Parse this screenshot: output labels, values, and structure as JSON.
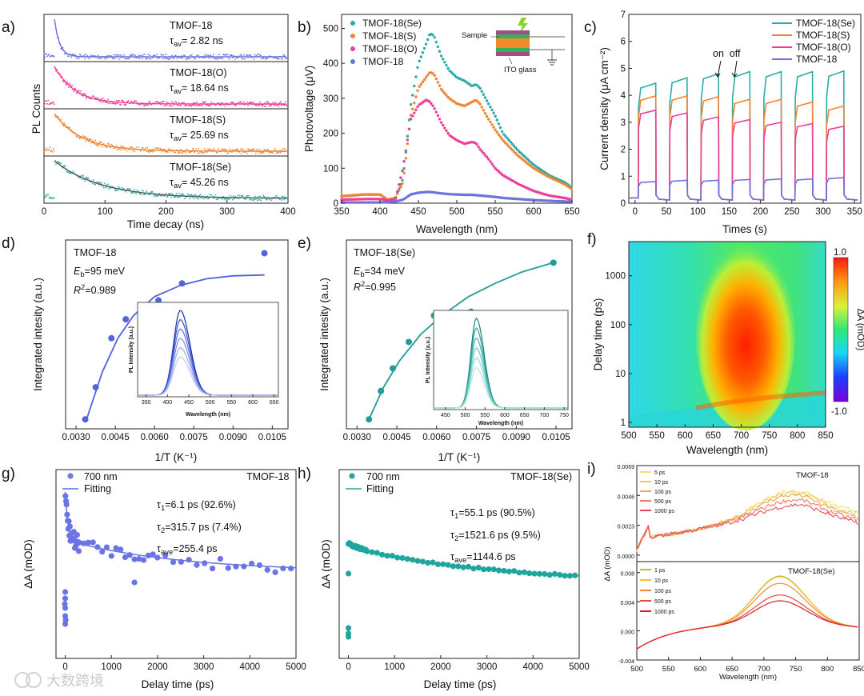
{
  "panels": [
    {
      "id": "a",
      "label": "a)",
      "xlabel": "Time decay (ns)",
      "ylabel": "PL Counts",
      "xticks": [
        "0",
        "100",
        "200",
        "300",
        "400"
      ],
      "traces": [
        {
          "name": "TMOF-18",
          "tau": "= 2.82 ns",
          "color": "#6e72e0"
        },
        {
          "name": "TMOF-18(O)",
          "tau": "= 18.64 ns",
          "color": "#ec3f97"
        },
        {
          "name": "TMOF-18(S)",
          "tau": "= 25.69 ns",
          "color": "#f08432"
        },
        {
          "name": "TMOF-18(Se)",
          "tau": "= 45.26 ns",
          "color": "#2aada6"
        }
      ]
    },
    {
      "id": "b",
      "label": "b)",
      "xlabel": "Wavelength (nm)",
      "ylabel": "Photovoltage (μV)",
      "xticks": [
        "350",
        "400",
        "450",
        "500",
        "550",
        "600",
        "650"
      ],
      "yticks": [
        "0",
        "100",
        "200",
        "300",
        "400",
        "500"
      ],
      "legend": [
        "TMOF-18(Se)",
        "TMOF-18(S)",
        "TMOF-18(O)",
        "TMOF-18"
      ],
      "inset": {
        "top": "Sample",
        "bottom": "ITO glass"
      }
    },
    {
      "id": "c",
      "label": "c)",
      "xlabel": "Times (s)",
      "ylabel": "Current density (μA cm⁻²)",
      "xticks": [
        "0",
        "50",
        "100",
        "150",
        "200",
        "250",
        "300",
        "350"
      ],
      "yticks": [
        "0",
        "1",
        "2",
        "3",
        "4",
        "5",
        "6",
        "7"
      ],
      "legend": [
        "TMOF-18(Se)",
        "TMOF-18(S)",
        "TMOF-18(O)",
        "TMOF-18"
      ],
      "annotation": "on  off"
    },
    {
      "id": "d",
      "label": "d)",
      "xlabel": "1/T (K⁻¹)",
      "ylabel": "Integrated intesity (a.u.)",
      "name": "TMOF-18",
      "eb": "=95 meV",
      "r2": "=0.989",
      "xticks": [
        "0.0030",
        "0.0045",
        "0.0060",
        "0.0075",
        "0.0090",
        "0.0105"
      ],
      "inset": {
        "xlabel": "Wavelength (nm)",
        "ylabel": "PL Intensity (a.u.)",
        "xticks": [
          "350",
          "400",
          "450",
          "500",
          "550",
          "600",
          "650"
        ]
      }
    },
    {
      "id": "e",
      "label": "e)",
      "xlabel": "1/T (K⁻¹)",
      "ylabel": "Integrated intesity (a.u.)",
      "name": "TMOF-18(Se)",
      "eb": "=34 meV",
      "r2": "=0.995",
      "xticks": [
        "0.0030",
        "0.0045",
        "0.0060",
        "0.0075",
        "0.0090",
        "0.0105"
      ],
      "inset": {
        "xlabel": "Wavelength (nm)",
        "ylabel": "PL Intensity (a.u.)",
        "xticks": [
          "450",
          "500",
          "550",
          "600",
          "650",
          "700",
          "750"
        ]
      }
    },
    {
      "id": "f",
      "label": "f)",
      "xlabel": "Wavelength (nm)",
      "ylabel": "Delay time (ps)",
      "xticks": [
        "500",
        "550",
        "600",
        "650",
        "700",
        "750",
        "800",
        "850"
      ],
      "yticks": [
        "1",
        "10",
        "100",
        "1000"
      ],
      "colorbar": {
        "max": "1.0",
        "min": "-1.0",
        "label": "ΔA (mOD)"
      }
    },
    {
      "id": "g",
      "label": "g)",
      "xlabel": "Delay time (ps)",
      "ylabel": "ΔA (mOD)",
      "name": "TMOF-18",
      "legend": [
        "700 nm",
        "Fitting"
      ],
      "tau1": "=6.1 ps (92.6%)",
      "tau2": "=315.7 ps (7.4%)",
      "tauave": "=255.4 ps",
      "xticks": [
        "0",
        "1000",
        "2000",
        "3000",
        "4000",
        "5000"
      ]
    },
    {
      "id": "h",
      "label": "h)",
      "xlabel": "Delay time (ps)",
      "ylabel": "ΔA (mOD)",
      "name": "TMOF-18(Se)",
      "legend": [
        "700 nm",
        "Fitting"
      ],
      "tau1": "=55.1 ps (90.5%)",
      "tau2": "=1521.6 ps (9.5%)",
      "tauave": "=1144.6 ps",
      "xticks": [
        "0",
        "1000",
        "2000",
        "3000",
        "4000",
        "5000"
      ]
    },
    {
      "id": "i",
      "label": "i)",
      "xlabel": "Wavelength (nm)",
      "ylabel": "ΔA (mOD)",
      "top": {
        "name": "TMOF-18",
        "legend": [
          "5 ps",
          "10 ps",
          "100 ps",
          "500 ps",
          "1000 ps"
        ],
        "yticks": [
          "0.0000",
          "0.0023",
          "0.0046",
          "0.0069"
        ]
      },
      "bottom": {
        "name": "TMOF-18(Se)",
        "legend": [
          "1 ps",
          "10 ps",
          "100 ps",
          "500 ps",
          "1000 ps"
        ],
        "yticks": [
          "-0.004",
          "0.000",
          "0.004",
          "0.008"
        ]
      },
      "xticks": [
        "500",
        "550",
        "600",
        "650",
        "700",
        "750",
        "800",
        "850"
      ]
    }
  ],
  "watermark": "大数跨境",
  "chart_data": [
    {
      "panel": "a",
      "type": "scatter",
      "x_range": [
        0,
        400
      ],
      "series": [
        {
          "name": "TMOF-18",
          "tau_av_ns": 2.82
        },
        {
          "name": "TMOF-18(O)",
          "tau_av_ns": 18.64
        },
        {
          "name": "TMOF-18(S)",
          "tau_av_ns": 25.69
        },
        {
          "name": "TMOF-18(Se)",
          "tau_av_ns": 45.26
        }
      ]
    },
    {
      "panel": "b",
      "type": "line",
      "x_range": [
        350,
        650
      ],
      "y_range": [
        0,
        540
      ],
      "x": [
        350,
        380,
        400,
        410,
        420,
        430,
        440,
        450,
        460,
        465,
        470,
        480,
        490,
        500,
        510,
        520,
        525,
        530,
        540,
        550,
        560,
        580,
        600,
        620,
        640,
        650
      ],
      "series": [
        {
          "name": "TMOF-18(Se)",
          "color": "#2aada6",
          "values": [
            20,
            25,
            25,
            10,
            15,
            70,
            280,
            400,
            455,
            485,
            480,
            420,
            380,
            360,
            350,
            335,
            340,
            330,
            290,
            250,
            200,
            150,
            110,
            80,
            60,
            45
          ]
        },
        {
          "name": "TMOF-18(S)",
          "color": "#f08432",
          "values": [
            20,
            25,
            25,
            10,
            15,
            60,
            250,
            330,
            360,
            375,
            370,
            325,
            300,
            285,
            278,
            290,
            295,
            285,
            245,
            210,
            180,
            135,
            100,
            75,
            55,
            40
          ]
        },
        {
          "name": "TMOF-18(O)",
          "color": "#ec3f97",
          "values": [
            10,
            12,
            12,
            8,
            10,
            100,
            240,
            280,
            295,
            290,
            275,
            230,
            195,
            180,
            170,
            175,
            172,
            155,
            130,
            100,
            80,
            55,
            35,
            22,
            15,
            10
          ]
        },
        {
          "name": "TMOF-18",
          "color": "#6e72e0",
          "values": [
            2,
            2,
            2,
            3,
            5,
            10,
            25,
            30,
            32,
            32,
            31,
            28,
            26,
            25,
            24,
            24,
            23,
            22,
            20,
            18,
            15,
            12,
            9,
            7,
            5,
            4
          ]
        }
      ]
    },
    {
      "panel": "c",
      "type": "line",
      "x_range": [
        -10,
        360
      ],
      "y_range": [
        0,
        7
      ],
      "on_times_s": [
        5,
        55,
        105,
        155,
        205,
        255,
        305
      ],
      "series": [
        {
          "name": "TMOF-18(Se)",
          "color": "#2aada6",
          "on_values": [
            4.45,
            4.65,
            4.8,
            4.88,
            4.88,
            4.88,
            4.9
          ]
        },
        {
          "name": "TMOF-18(S)",
          "color": "#f08432",
          "on_values": [
            3.98,
            3.98,
            3.95,
            3.85,
            3.85,
            3.75,
            3.6
          ]
        },
        {
          "name": "TMOF-18(O)",
          "color": "#ec3f97",
          "on_values": [
            3.45,
            3.35,
            3.2,
            3.1,
            3.0,
            2.95,
            2.85
          ]
        },
        {
          "name": "TMOF-18",
          "color": "#6e72e0",
          "on_values": [
            0.8,
            0.85,
            0.85,
            0.88,
            0.9,
            0.9,
            0.95
          ]
        }
      ]
    },
    {
      "panel": "d",
      "type": "scatter",
      "x_range": [
        0.0026,
        0.0111
      ],
      "points": [
        [
          0.00335,
          0.05
        ],
        [
          0.00375,
          0.22
        ],
        [
          0.00435,
          0.48
        ],
        [
          0.0049,
          0.58
        ],
        [
          0.00615,
          0.68
        ],
        [
          0.00705,
          0.77
        ],
        [
          0.0102,
          0.93
        ]
      ],
      "fit": [
        [
          0.0034,
          0.05
        ],
        [
          0.004,
          0.3
        ],
        [
          0.0046,
          0.48
        ],
        [
          0.0052,
          0.6
        ],
        [
          0.006,
          0.7
        ],
        [
          0.007,
          0.76
        ],
        [
          0.008,
          0.795
        ],
        [
          0.009,
          0.81
        ],
        [
          0.0102,
          0.815
        ]
      ]
    },
    {
      "panel": "e",
      "type": "scatter",
      "x_range": [
        0.0026,
        0.0111
      ],
      "points": [
        [
          0.00345,
          0.05
        ],
        [
          0.0039,
          0.2
        ],
        [
          0.00435,
          0.32
        ],
        [
          0.00495,
          0.46
        ],
        [
          0.0059,
          0.6
        ],
        [
          0.0073,
          0.62
        ],
        [
          0.0104,
          0.88
        ]
      ],
      "fit": [
        [
          0.00345,
          0.05
        ],
        [
          0.004,
          0.22
        ],
        [
          0.0046,
          0.36
        ],
        [
          0.0054,
          0.5
        ],
        [
          0.0062,
          0.6
        ],
        [
          0.0072,
          0.7
        ],
        [
          0.0082,
          0.77
        ],
        [
          0.0092,
          0.83
        ],
        [
          0.0104,
          0.88
        ]
      ]
    },
    {
      "panel": "f",
      "type": "heatmap",
      "x_range": [
        500,
        850
      ],
      "y_range_ps": [
        0.8,
        5000
      ],
      "z_range": [
        -1.0,
        1.0
      ]
    },
    {
      "panel": "g",
      "type": "scatter",
      "x_range": [
        -200,
        5000
      ],
      "tau1_ps": 6.1,
      "tau1_pct": 92.6,
      "tau2_ps": 315.7,
      "tau2_pct": 7.4,
      "tau_ave_ps": 255.4
    },
    {
      "panel": "h",
      "type": "scatter",
      "x_range": [
        -200,
        5000
      ],
      "tau1_ps": 55.1,
      "tau1_pct": 90.5,
      "tau2_ps": 1521.6,
      "tau2_pct": 9.5,
      "tau_ave_ps": 1144.6
    },
    {
      "panel": "i",
      "type": "line",
      "x_range": [
        500,
        850
      ],
      "top": {
        "y_range": [
          -0.0005,
          0.0069
        ],
        "series": [
          {
            "name": "5 ps",
            "color": "#f0e070",
            "peak": 0.0046
          },
          {
            "name": "10 ps",
            "color": "#f3cc55",
            "peak": 0.0045
          },
          {
            "name": "100 ps",
            "color": "#f2a860",
            "peak": 0.0043
          },
          {
            "name": "500 ps",
            "color": "#ec7c6a",
            "peak": 0.0039
          },
          {
            "name": "1000 ps",
            "color": "#e94a5a",
            "peak": 0.0035
          }
        ]
      },
      "bottom": {
        "y_range": [
          -0.004,
          0.0095
        ],
        "series": [
          {
            "name": "1 ps",
            "color": "#c8b43a",
            "peak": 0.0066
          },
          {
            "name": "10 ps",
            "color": "#f2c23c",
            "peak": 0.0065
          },
          {
            "name": "100 ps",
            "color": "#f08a3a",
            "peak": 0.0056
          },
          {
            "name": "500 ps",
            "color": "#e34d35",
            "peak": 0.004
          },
          {
            "name": "1000 ps",
            "color": "#de1f2a",
            "peak": 0.0032
          }
        ]
      }
    }
  ]
}
